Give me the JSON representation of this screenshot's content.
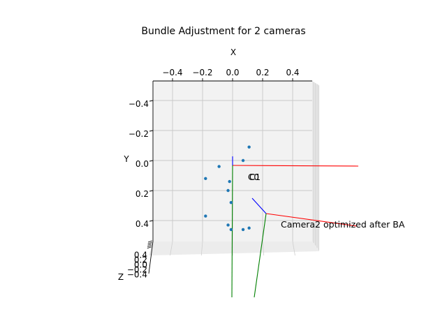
{
  "chart_data": {
    "type": "scatter",
    "projection": "3d",
    "title": "Bundle Adjustment for 2 cameras",
    "xlabel": "X",
    "ylabel": "Y",
    "zlabel": "Z",
    "x_ticks": [
      "−0.4",
      "−0.2",
      "0.0",
      "0.2",
      "0.4"
    ],
    "y_ticks": [
      "−0.4",
      "−0.2",
      "0.0",
      "0.2",
      "0.4"
    ],
    "z_ticks": [
      "0.4",
      "0.2",
      "0.0",
      "−0.2",
      "−0.4"
    ],
    "xlim": [
      -0.5,
      0.5
    ],
    "ylim": [
      -0.5,
      0.5
    ],
    "grid": true,
    "points_color": "#1f77b4",
    "points": [
      {
        "x": 0.11,
        "y": -0.09
      },
      {
        "x": 0.07,
        "y": 0.0
      },
      {
        "x": -0.09,
        "y": 0.04
      },
      {
        "x": -0.18,
        "y": 0.12
      },
      {
        "x": -0.02,
        "y": 0.14
      },
      {
        "x": -0.03,
        "y": 0.2
      },
      {
        "x": -0.01,
        "y": 0.28
      },
      {
        "x": -0.18,
        "y": 0.37
      },
      {
        "x": -0.03,
        "y": 0.43
      },
      {
        "x": -0.01,
        "y": 0.46
      },
      {
        "x": 0.07,
        "y": 0.46
      },
      {
        "x": 0.11,
        "y": 0.45
      }
    ],
    "camera_labels": [
      "C0",
      "C1",
      "Camera2 optimized after BA"
    ],
    "axis_colors": {
      "x": "#ff0000",
      "y": "#008000",
      "z": "#0000ff"
    }
  }
}
